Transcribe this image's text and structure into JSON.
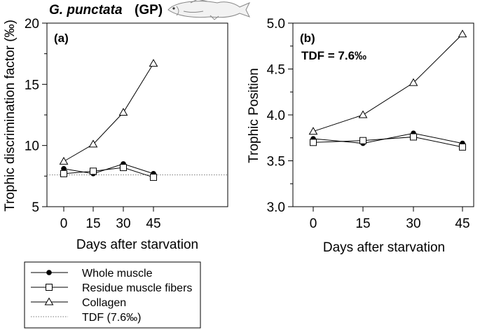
{
  "figure": {
    "species_name": "G. punctata",
    "species_code": "(GP)",
    "fish_icon": "fish-icon"
  },
  "chart_data": [
    {
      "type": "line",
      "panel_label": "(a)",
      "xlabel": "Days after starvation",
      "ylabel": "Trophic discrimination factor (‰)",
      "x": [
        0,
        15,
        30,
        45
      ],
      "x_ticks": [
        "0",
        "15",
        "30",
        "45"
      ],
      "ylim": [
        5,
        20
      ],
      "y_ticks": [
        "5",
        "10",
        "15",
        "20"
      ],
      "series": [
        {
          "name": "Whole muscle",
          "marker": "circle-filled",
          "values": [
            8.1,
            7.7,
            8.5,
            7.7
          ]
        },
        {
          "name": "Residue muscle fibers",
          "marker": "square-open",
          "values": [
            7.7,
            7.9,
            8.2,
            7.4
          ]
        },
        {
          "name": "Collagen",
          "marker": "triangle-open",
          "values": [
            8.7,
            10.1,
            12.7,
            16.7
          ]
        }
      ],
      "reference_line": {
        "name": "TDF (7.6‰)",
        "value": 7.6,
        "style": "dotted"
      }
    },
    {
      "type": "line",
      "panel_label": "(b)",
      "annotation": "TDF = 7.6‰",
      "xlabel": "Days after starvation",
      "ylabel": "Trophic Position",
      "x": [
        0,
        15,
        30,
        45
      ],
      "x_ticks": [
        "0",
        "15",
        "30",
        "45"
      ],
      "ylim": [
        3.0,
        5.0
      ],
      "y_ticks": [
        "3.0",
        "3.5",
        "4.0",
        "4.5",
        "5.0"
      ],
      "series": [
        {
          "name": "Whole muscle",
          "marker": "circle-filled",
          "values": [
            3.74,
            3.69,
            3.8,
            3.69
          ]
        },
        {
          "name": "Residue muscle fibers",
          "marker": "square-open",
          "values": [
            3.7,
            3.72,
            3.76,
            3.65
          ]
        },
        {
          "name": "Collagen",
          "marker": "triangle-open",
          "values": [
            3.82,
            4.0,
            4.35,
            4.88
          ]
        }
      ]
    }
  ],
  "legend": {
    "items": [
      {
        "label": "Whole muscle",
        "marker": "circle-filled"
      },
      {
        "label": "Residue muscle fibers",
        "marker": "square-open"
      },
      {
        "label": "Collagen",
        "marker": "triangle-open"
      },
      {
        "label": "TDF (7.6‰)",
        "marker": "dotted-line"
      }
    ]
  }
}
